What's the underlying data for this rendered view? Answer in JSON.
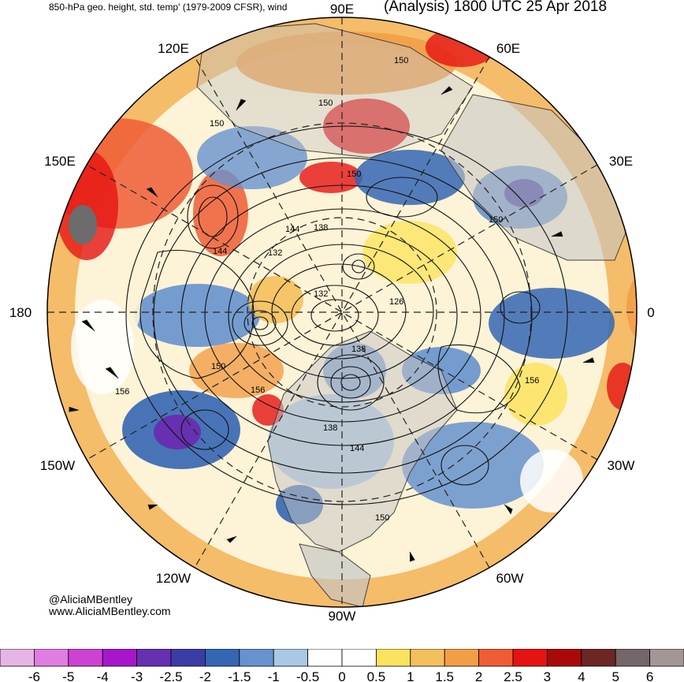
{
  "header": {
    "left_title": "850-hPa geo. height, std. temp' (1979-2009 CFSR), wind",
    "right_title": "(Analysis) 1800 UTC 25 Apr 2018"
  },
  "credits": {
    "twitter": "@AliciaMBentley",
    "website": "www.AliciaMBentley.com"
  },
  "map": {
    "projection": "north-polar-stereographic",
    "land_color": "#c4c4c4",
    "coastline_color": "#3c3c3c",
    "longitude_labels": [
      "90E",
      "60E",
      "30E",
      "0",
      "30W",
      "60W",
      "90W",
      "120W",
      "150W",
      "180",
      "150E",
      "120E"
    ],
    "contour_values": [
      "150",
      "150",
      "150",
      "150",
      "150",
      "144",
      "138",
      "144",
      "132",
      "132",
      "126",
      "138",
      "150",
      "156",
      "156",
      "156",
      "138",
      "144",
      "150"
    ]
  },
  "colorbar": {
    "ticks": [
      "-6",
      "-5",
      "-4",
      "-3",
      "-2.5",
      "-2",
      "-1.5",
      "-1",
      "-0.5",
      "0",
      "0.5",
      "1",
      "1.5",
      "2",
      "2.5",
      "3",
      "4",
      "5",
      "6"
    ],
    "colors": [
      "#e7b4e6",
      "#e07de2",
      "#cd42d3",
      "#a816cb",
      "#6630b0",
      "#3c3ca6",
      "#3466b4",
      "#6692ce",
      "#a8c8e6",
      "#ffffff",
      "#ffffff",
      "#fbe35f",
      "#f4c05c",
      "#f29e47",
      "#ef5c35",
      "#e61313",
      "#a80a0a",
      "#6c2625",
      "#75666a",
      "#a49697"
    ]
  }
}
